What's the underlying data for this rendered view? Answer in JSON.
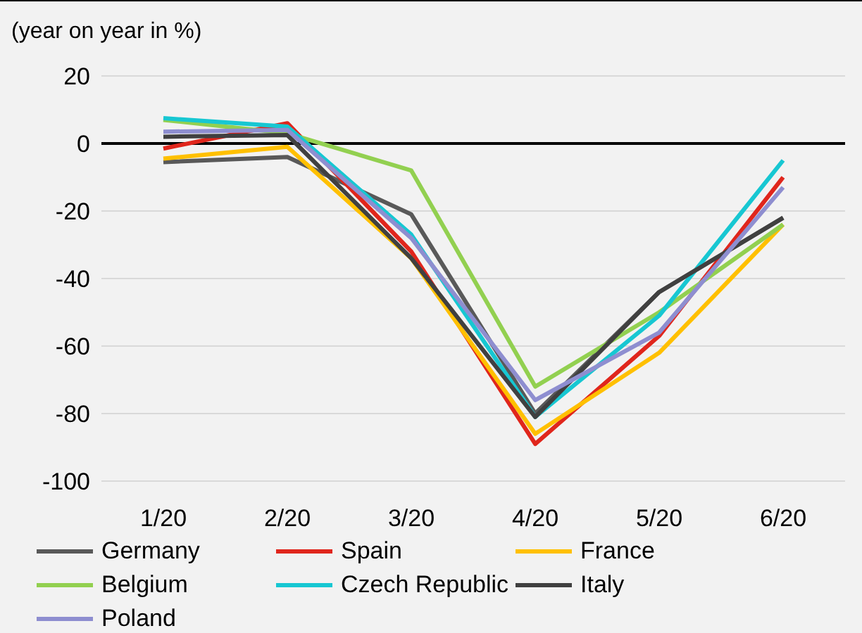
{
  "chart_data": {
    "type": "line",
    "title": "(year on year in %)",
    "categories": [
      "1/20",
      "2/20",
      "3/20",
      "4/20",
      "5/20",
      "6/20"
    ],
    "series": [
      {
        "name": "Germany",
        "color": "#595959",
        "values": [
          -5.5,
          -4,
          -21,
          -80,
          -44,
          -22
        ]
      },
      {
        "name": "Spain",
        "color": "#e0261c",
        "values": [
          -1.5,
          6,
          -32,
          -89,
          -57,
          -10
        ]
      },
      {
        "name": "France",
        "color": "#ffc000",
        "values": [
          -4.5,
          -1,
          -34,
          -86,
          -62,
          -24
        ]
      },
      {
        "name": "Belgium",
        "color": "#92d050",
        "values": [
          7,
          3,
          -8,
          -72,
          -50,
          -24
        ]
      },
      {
        "name": "Czech Republic",
        "color": "#17c7d2",
        "values": [
          7.5,
          5,
          -27,
          -81,
          -51,
          -5
        ]
      },
      {
        "name": "Italy",
        "color": "#404040",
        "values": [
          2,
          2.5,
          -34,
          -81,
          -44,
          -22
        ]
      },
      {
        "name": "Poland",
        "color": "#8e8ed0",
        "values": [
          3.5,
          4,
          -28,
          -76,
          -56,
          -13
        ]
      }
    ],
    "ylim": [
      -100,
      20
    ],
    "yticks": [
      -100,
      -80,
      -60,
      -40,
      -20,
      0,
      20
    ],
    "grid": "y",
    "legend": "bottom",
    "marker": "none",
    "line_style": "solid",
    "ref_lines": [
      {
        "axis": "y",
        "value": 0,
        "color": "#000000"
      }
    ]
  }
}
